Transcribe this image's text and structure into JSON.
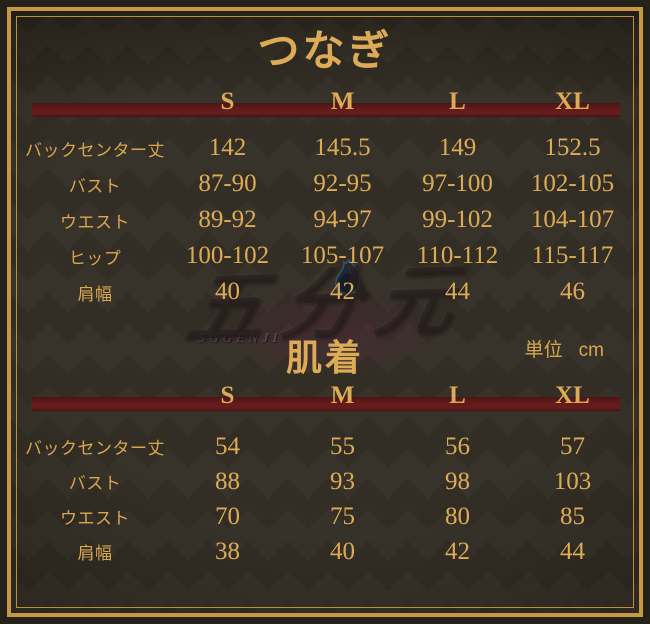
{
  "chart_data": [
    {
      "type": "table",
      "title": "つなぎ",
      "columns": [
        "S",
        "M",
        "L",
        "XL"
      ],
      "rows": [
        {
          "label": "バックセンター丈",
          "values": [
            "142",
            "145.5",
            "149",
            "152.5"
          ]
        },
        {
          "label": "バスト",
          "values": [
            "87-90",
            "92-95",
            "97-100",
            "102-105"
          ]
        },
        {
          "label": "ウエスト",
          "values": [
            "89-92",
            "94-97",
            "99-102",
            "104-107"
          ]
        },
        {
          "label": "ヒップ",
          "values": [
            "100-102",
            "105-107",
            "110-112",
            "115-117"
          ]
        },
        {
          "label": "肩幅",
          "values": [
            "40",
            "42",
            "44",
            "46"
          ]
        }
      ]
    },
    {
      "type": "table",
      "title": "肌着",
      "columns": [
        "S",
        "M",
        "L",
        "XL"
      ],
      "rows": [
        {
          "label": "バックセンター丈",
          "values": [
            "54",
            "55",
            "56",
            "57"
          ]
        },
        {
          "label": "バスト",
          "values": [
            "88",
            "93",
            "98",
            "103"
          ]
        },
        {
          "label": "ウエスト",
          "values": [
            "70",
            "75",
            "80",
            "85"
          ]
        },
        {
          "label": "肩幅",
          "values": [
            "38",
            "40",
            "42",
            "44"
          ]
        }
      ]
    }
  ],
  "unit_note": {
    "label": "単位",
    "value": "cm"
  },
  "watermark": {
    "logo_text": "五分元",
    "logo_subtext": "SGGENJI"
  },
  "colors": {
    "gold": "#d8a64f",
    "gold-bright": "#ddab56",
    "bar-red": "#5e1a1a",
    "bg-base": "#38332a",
    "bg-diamond": "#332e25",
    "frame-gold": "#c9973f",
    "outer-dark": "#242119"
  }
}
